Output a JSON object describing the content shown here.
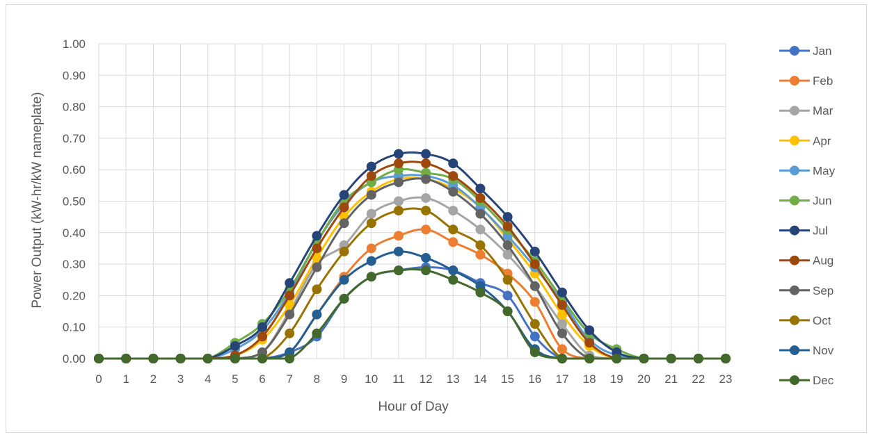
{
  "chart_data": {
    "type": "line",
    "title": "",
    "xlabel": "Hour of Day",
    "ylabel": "Power Output (kW-hr/kW nameplate)",
    "ylim": [
      0,
      1.0
    ],
    "yticks": [
      "0.00",
      "0.10",
      "0.20",
      "0.30",
      "0.40",
      "0.50",
      "0.60",
      "0.70",
      "0.80",
      "0.90",
      "1.00"
    ],
    "x": [
      0,
      1,
      2,
      3,
      4,
      5,
      6,
      7,
      8,
      9,
      10,
      11,
      12,
      13,
      14,
      15,
      16,
      17,
      18,
      19,
      20,
      21,
      22,
      23
    ],
    "grid": true,
    "legend_position": "right",
    "series": [
      {
        "name": "Jan",
        "color": "#4472C4",
        "values": [
          0,
          0,
          0,
          0,
          0,
          0,
          0,
          0.02,
          0.07,
          0.19,
          0.26,
          0.28,
          0.29,
          0.28,
          0.24,
          0.2,
          0.07,
          0,
          0,
          0,
          0,
          0,
          0,
          0
        ]
      },
      {
        "name": "Feb",
        "color": "#ED7D31",
        "values": [
          0,
          0,
          0,
          0,
          0,
          0,
          0,
          0.02,
          0.14,
          0.26,
          0.35,
          0.39,
          0.41,
          0.37,
          0.33,
          0.27,
          0.18,
          0.03,
          0,
          0,
          0,
          0,
          0,
          0
        ]
      },
      {
        "name": "Mar",
        "color": "#A5A5A5",
        "values": [
          0,
          0,
          0,
          0,
          0,
          0,
          0.02,
          0.15,
          0.3,
          0.36,
          0.46,
          0.5,
          0.51,
          0.47,
          0.41,
          0.33,
          0.23,
          0.11,
          0.01,
          0,
          0,
          0,
          0,
          0
        ]
      },
      {
        "name": "Apr",
        "color": "#FFC000",
        "values": [
          0,
          0,
          0,
          0,
          0,
          0.01,
          0.06,
          0.17,
          0.32,
          0.45,
          0.53,
          0.57,
          0.57,
          0.54,
          0.48,
          0.38,
          0.27,
          0.14,
          0.04,
          0,
          0,
          0,
          0,
          0
        ]
      },
      {
        "name": "May",
        "color": "#5B9BD5",
        "values": [
          0,
          0,
          0,
          0,
          0,
          0.03,
          0.09,
          0.21,
          0.37,
          0.49,
          0.56,
          0.58,
          0.58,
          0.55,
          0.48,
          0.39,
          0.29,
          0.18,
          0.06,
          0.01,
          0,
          0,
          0,
          0
        ]
      },
      {
        "name": "Jun",
        "color": "#70AD47",
        "values": [
          0,
          0,
          0,
          0,
          0,
          0.05,
          0.11,
          0.22,
          0.37,
          0.5,
          0.56,
          0.6,
          0.59,
          0.57,
          0.5,
          0.41,
          0.31,
          0.19,
          0.08,
          0.03,
          0,
          0,
          0,
          0
        ]
      },
      {
        "name": "Jul",
        "color": "#264478",
        "values": [
          0,
          0,
          0,
          0,
          0,
          0.04,
          0.1,
          0.24,
          0.39,
          0.52,
          0.61,
          0.65,
          0.65,
          0.62,
          0.54,
          0.45,
          0.34,
          0.21,
          0.09,
          0.02,
          0,
          0,
          0,
          0
        ]
      },
      {
        "name": "Aug",
        "color": "#9E480E",
        "values": [
          0,
          0,
          0,
          0,
          0,
          0.01,
          0.07,
          0.2,
          0.35,
          0.48,
          0.58,
          0.62,
          0.62,
          0.58,
          0.51,
          0.42,
          0.3,
          0.17,
          0.05,
          0,
          0,
          0,
          0,
          0
        ]
      },
      {
        "name": "Sep",
        "color": "#636363",
        "values": [
          0,
          0,
          0,
          0,
          0,
          0,
          0.02,
          0.14,
          0.29,
          0.43,
          0.52,
          0.56,
          0.57,
          0.53,
          0.46,
          0.36,
          0.23,
          0.08,
          0,
          0,
          0,
          0,
          0,
          0
        ]
      },
      {
        "name": "Oct",
        "color": "#997300",
        "values": [
          0,
          0,
          0,
          0,
          0,
          0,
          0,
          0.08,
          0.22,
          0.34,
          0.43,
          0.47,
          0.47,
          0.41,
          0.36,
          0.25,
          0.11,
          0,
          0,
          0,
          0,
          0,
          0,
          0
        ]
      },
      {
        "name": "Nov",
        "color": "#255E91",
        "values": [
          0,
          0,
          0,
          0,
          0,
          0,
          0,
          0.02,
          0.14,
          0.25,
          0.31,
          0.34,
          0.32,
          0.28,
          0.23,
          0.15,
          0.03,
          0,
          0,
          0,
          0,
          0,
          0,
          0
        ]
      },
      {
        "name": "Dec",
        "color": "#43682B",
        "values": [
          0,
          0,
          0,
          0,
          0,
          0,
          0,
          0,
          0.08,
          0.19,
          0.26,
          0.28,
          0.28,
          0.25,
          0.21,
          0.15,
          0.02,
          0,
          0,
          0,
          0,
          0,
          0,
          0
        ]
      }
    ]
  }
}
